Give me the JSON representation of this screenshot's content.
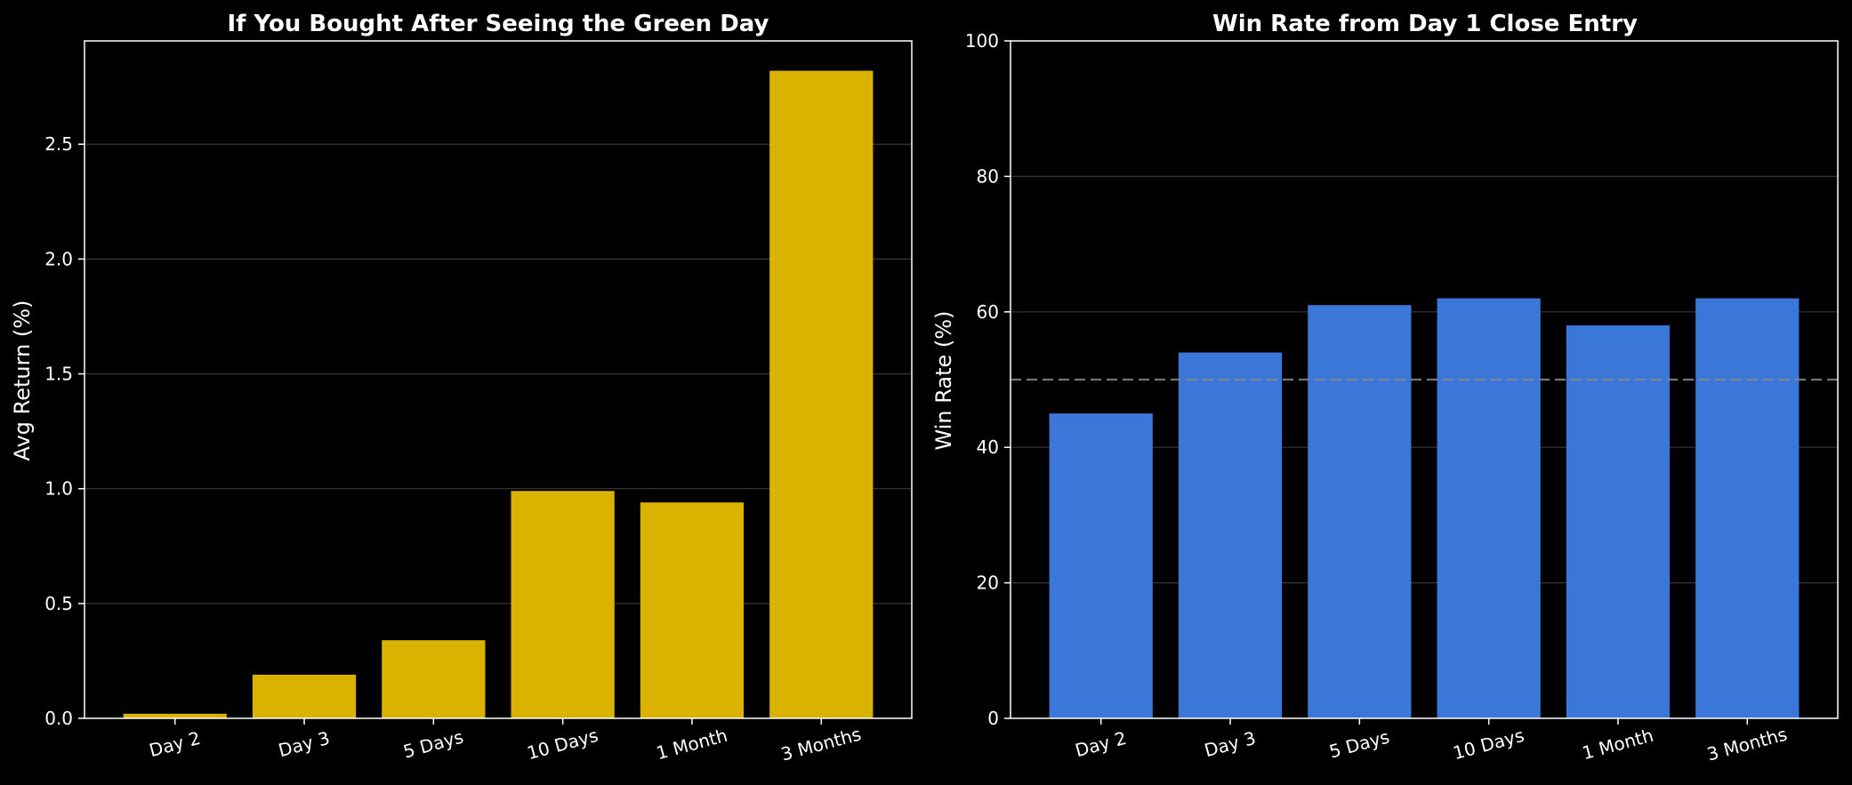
{
  "chart_data": [
    {
      "type": "bar",
      "title": "If You Bought After Seeing the Green Day",
      "xlabel": "",
      "ylabel": "Avg Return (%)",
      "categories": [
        "Day 2",
        "Day 3",
        "5 Days",
        "10 Days",
        "1 Month",
        "3 Months"
      ],
      "values": [
        0.02,
        0.19,
        0.34,
        0.99,
        0.94,
        2.82
      ],
      "ylim": [
        0,
        2.95
      ],
      "yticks": [
        0.0,
        0.5,
        1.0,
        1.5,
        2.0,
        2.5
      ],
      "ytick_labels": [
        "0.0",
        "0.5",
        "1.0",
        "1.5",
        "2.0",
        "2.5"
      ],
      "grid": "horizontal",
      "bar_color": "#d9b300",
      "reference_line": null
    },
    {
      "type": "bar",
      "title": "Win Rate from Day 1 Close Entry",
      "xlabel": "",
      "ylabel": "Win Rate (%)",
      "categories": [
        "Day 2",
        "Day 3",
        "5 Days",
        "10 Days",
        "1 Month",
        "3 Months"
      ],
      "values": [
        45,
        54,
        61,
        62,
        58,
        62
      ],
      "ylim": [
        0,
        100
      ],
      "yticks": [
        0,
        20,
        40,
        60,
        80,
        100
      ],
      "ytick_labels": [
        "0",
        "20",
        "40",
        "60",
        "80",
        "100"
      ],
      "grid": "horizontal",
      "bar_color": "#3b76d9",
      "reference_line": {
        "y": 50,
        "style": "dashed",
        "color": "#888888"
      }
    }
  ],
  "colors": {
    "background": "#000000",
    "text": "#ffffff"
  }
}
